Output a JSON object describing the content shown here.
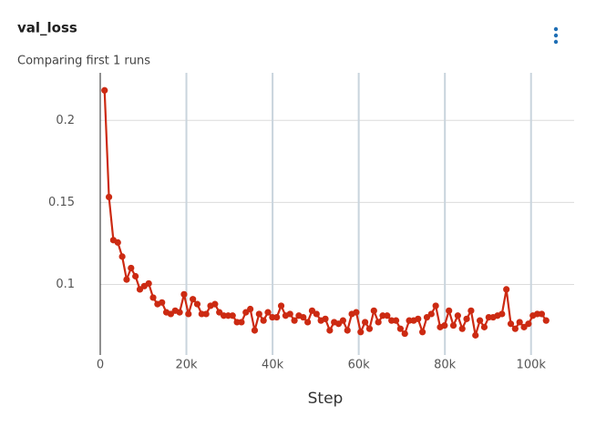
{
  "chart_data": {
    "type": "line",
    "title": "val_loss",
    "subtitle": "Comparing first 1 runs",
    "x_label": "Step",
    "x": [
      1000,
      2025,
      3050,
      4075,
      5100,
      6125,
      7150,
      8175,
      9200,
      10225,
      11250,
      12275,
      13300,
      14325,
      15350,
      16375,
      17400,
      18425,
      19450,
      20475,
      21500,
      22525,
      23550,
      24575,
      25600,
      26625,
      27650,
      28675,
      29700,
      30725,
      31750,
      32775,
      33800,
      34825,
      35850,
      36875,
      37900,
      38925,
      39950,
      40975,
      42000,
      43025,
      44050,
      45075,
      46100,
      47125,
      48150,
      49175,
      50200,
      51225,
      52250,
      53275,
      54300,
      55325,
      56350,
      57375,
      58400,
      59425,
      60450,
      61475,
      62500,
      63525,
      64550,
      65575,
      66600,
      67625,
      68650,
      69675,
      70700,
      71725,
      72750,
      73775,
      74800,
      75825,
      76850,
      77875,
      78900,
      79925,
      80950,
      81975,
      83000,
      84025,
      85050,
      86075,
      87100,
      88125,
      89150,
      90175,
      91200,
      92225,
      93250,
      94275,
      95300,
      96325,
      97350,
      98375,
      99400,
      100425,
      101450,
      102475,
      103500
    ],
    "series": [
      {
        "name": "val_loss",
        "color": "#cc2a12",
        "values": [
          0.2183,
          0.1533,
          0.127,
          0.1256,
          0.117,
          0.103,
          0.11,
          0.105,
          0.097,
          0.099,
          0.1006,
          0.092,
          0.088,
          0.089,
          0.083,
          0.082,
          0.084,
          0.083,
          0.094,
          0.082,
          0.091,
          0.088,
          0.082,
          0.082,
          0.087,
          0.088,
          0.083,
          0.081,
          0.081,
          0.081,
          0.077,
          0.077,
          0.083,
          0.085,
          0.072,
          0.082,
          0.078,
          0.083,
          0.08,
          0.08,
          0.087,
          0.081,
          0.082,
          0.078,
          0.081,
          0.08,
          0.077,
          0.084,
          0.082,
          0.078,
          0.079,
          0.072,
          0.077,
          0.076,
          0.078,
          0.072,
          0.082,
          0.083,
          0.071,
          0.077,
          0.073,
          0.084,
          0.077,
          0.081,
          0.081,
          0.078,
          0.078,
          0.073,
          0.07,
          0.078,
          0.078,
          0.079,
          0.071,
          0.08,
          0.082,
          0.087,
          0.074,
          0.075,
          0.084,
          0.075,
          0.081,
          0.073,
          0.079,
          0.084,
          0.069,
          0.078,
          0.074,
          0.08,
          0.08,
          0.081,
          0.082,
          0.097,
          0.076,
          0.073,
          0.077,
          0.074,
          0.076,
          0.081,
          0.082,
          0.082,
          0.078
        ]
      }
    ],
    "xlim": [
      0,
      110000
    ],
    "ylim": [
      0.057,
      0.229
    ],
    "xticks": [
      0,
      {
        "value": 20000,
        "label": "20k"
      },
      {
        "value": 40000,
        "label": "40k"
      },
      {
        "value": 60000,
        "label": "60k"
      },
      {
        "value": 80000,
        "label": "80k"
      },
      {
        "value": 100000,
        "label": "100k"
      }
    ],
    "yticks": [
      0.1,
      0.15,
      0.2
    ],
    "grid": true
  }
}
